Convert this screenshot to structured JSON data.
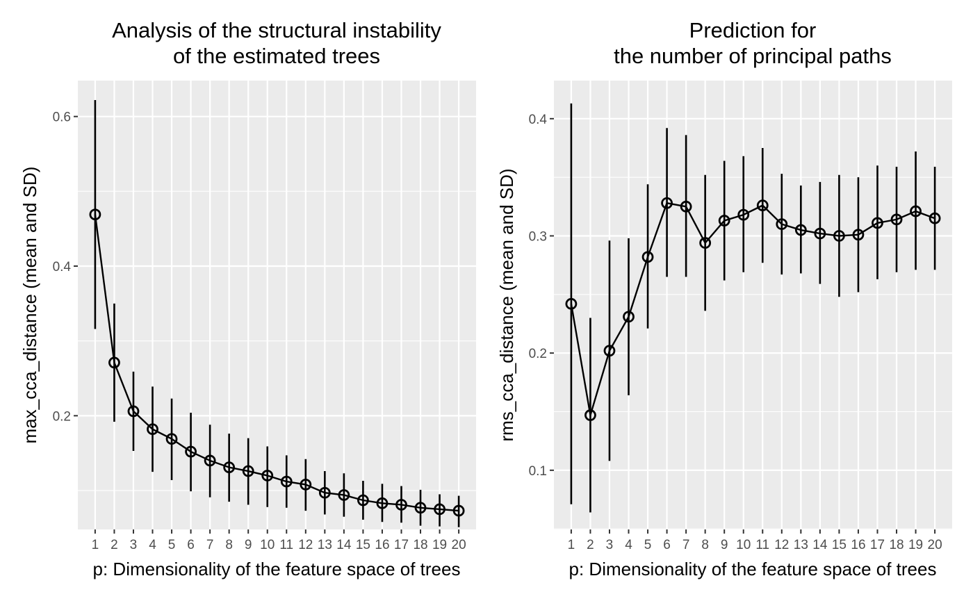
{
  "chart_data": [
    {
      "type": "line",
      "title_lines": [
        "Analysis of the structural instability",
        "of the estimated trees"
      ],
      "xlabel": "p: Dimensionality of the feature space of trees",
      "ylabel": "max_cca_distance (mean and SD)",
      "categories": [
        "1",
        "2",
        "3",
        "4",
        "5",
        "6",
        "7",
        "8",
        "9",
        "10",
        "11",
        "12",
        "13",
        "14",
        "15",
        "16",
        "17",
        "18",
        "19",
        "20"
      ],
      "values": [
        0.469,
        0.271,
        0.206,
        0.182,
        0.169,
        0.152,
        0.14,
        0.131,
        0.126,
        0.12,
        0.112,
        0.108,
        0.097,
        0.094,
        0.087,
        0.083,
        0.081,
        0.077,
        0.075,
        0.073
      ],
      "sd_lower": [
        0.316,
        0.192,
        0.153,
        0.125,
        0.114,
        0.099,
        0.091,
        0.085,
        0.081,
        0.078,
        0.077,
        0.073,
        0.068,
        0.065,
        0.061,
        0.058,
        0.057,
        0.053,
        0.052,
        0.051
      ],
      "sd_upper": [
        0.622,
        0.35,
        0.259,
        0.239,
        0.223,
        0.204,
        0.188,
        0.176,
        0.17,
        0.159,
        0.147,
        0.142,
        0.126,
        0.123,
        0.113,
        0.109,
        0.106,
        0.101,
        0.095,
        0.093
      ],
      "yticks": [
        "0.2",
        "0.4",
        "0.6"
      ],
      "ylim": [
        0.048,
        0.648
      ],
      "grid": true
    },
    {
      "type": "line",
      "title_lines": [
        "Prediction for",
        "the number of principal paths"
      ],
      "xlabel": "p: Dimensionality of the feature space of trees",
      "ylabel": "rms_cca_distance (mean and SD)",
      "categories": [
        "1",
        "2",
        "3",
        "4",
        "5",
        "6",
        "7",
        "8",
        "9",
        "10",
        "11",
        "12",
        "13",
        "14",
        "15",
        "16",
        "17",
        "18",
        "19",
        "20"
      ],
      "values": [
        0.242,
        0.147,
        0.202,
        0.231,
        0.282,
        0.328,
        0.325,
        0.294,
        0.313,
        0.318,
        0.326,
        0.31,
        0.305,
        0.302,
        0.3,
        0.301,
        0.311,
        0.314,
        0.321,
        0.315
      ],
      "sd_lower": [
        0.071,
        0.064,
        0.108,
        0.164,
        0.221,
        0.265,
        0.265,
        0.236,
        0.262,
        0.269,
        0.277,
        0.267,
        0.268,
        0.259,
        0.248,
        0.252,
        0.263,
        0.269,
        0.271,
        0.271
      ],
      "sd_upper": [
        0.413,
        0.23,
        0.296,
        0.298,
        0.344,
        0.392,
        0.386,
        0.352,
        0.364,
        0.368,
        0.375,
        0.353,
        0.343,
        0.346,
        0.352,
        0.35,
        0.36,
        0.359,
        0.372,
        0.359
      ],
      "yticks": [
        "0.1",
        "0.2",
        "0.3",
        "0.4"
      ],
      "ylim": [
        0.0495,
        0.4325
      ],
      "grid": true
    }
  ]
}
